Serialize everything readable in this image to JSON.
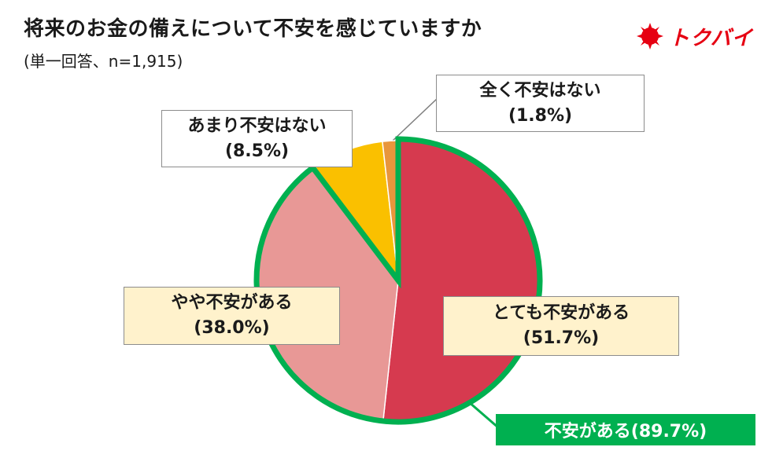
{
  "header": {
    "title": "将来のお金の備えについて不安を感じていますか",
    "subtitle": "(単一回答、n=1,915)"
  },
  "logo": {
    "text": "トクバイ",
    "icon": "red-sun-mark",
    "color": "#e60012"
  },
  "chart_data": {
    "type": "pie",
    "title": "将来のお金の備えについて不安を感じていますか",
    "subtitle": "(単一回答、n=1,915)",
    "slices": [
      {
        "label": "とても不安がある",
        "value": 51.7,
        "display": "(51.7%)",
        "color": "#d63a4f"
      },
      {
        "label": "やや不安がある",
        "value": 38.0,
        "display": "(38.0%)",
        "color": "#e89896"
      },
      {
        "label": "あまり不安はない",
        "value": 8.5,
        "display": "(8.5%)",
        "color": "#fac000"
      },
      {
        "label": "全く不安はない",
        "value": 1.8,
        "display": "(1.8%)",
        "color": "#e8963c"
      }
    ],
    "highlight": {
      "label": "不安がある(89.7%)",
      "value": 89.7,
      "color": "#00b050"
    },
    "start": "12 o'clock",
    "direction": "clockwise"
  }
}
